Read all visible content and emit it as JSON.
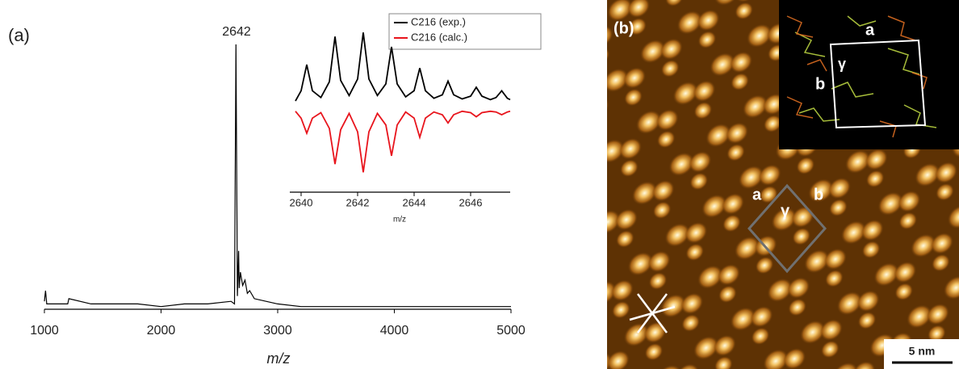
{
  "chart_data": [
    {
      "type": "line",
      "panel_label": "(a)",
      "peak_label": "2642",
      "x_label": "m/z",
      "color": "#000000",
      "x": [
        1000,
        1010,
        1020,
        1200,
        1210,
        1400,
        1600,
        1800,
        2000,
        2200,
        2400,
        2600,
        2630,
        2642,
        2655,
        2665,
        2670,
        2680,
        2700,
        2720,
        2740,
        2760,
        2800,
        2900,
        3000,
        3200,
        3500,
        4000,
        4500,
        5000
      ],
      "values": [
        3,
        7,
        2,
        2,
        4,
        2,
        2,
        2,
        1,
        2,
        2,
        3,
        2,
        100,
        5,
        22,
        8,
        14,
        9,
        11,
        6,
        7,
        4,
        3,
        2,
        1,
        1,
        1,
        1,
        1
      ],
      "xlim": [
        1000,
        5000
      ],
      "xticks": [
        1000,
        2000,
        3000,
        4000,
        5000
      ],
      "ylim": [
        0,
        100
      ]
    },
    {
      "type": "line",
      "x_label": "m/z",
      "x": [
        2639.8,
        2640.0,
        2640.2,
        2640.4,
        2640.7,
        2641.0,
        2641.2,
        2641.4,
        2641.7,
        2642.0,
        2642.2,
        2642.4,
        2642.7,
        2643.0,
        2643.2,
        2643.4,
        2643.7,
        2644.0,
        2644.2,
        2644.4,
        2644.7,
        2645.0,
        2645.2,
        2645.4,
        2645.7,
        2646.0,
        2646.2,
        2646.4,
        2646.7,
        2646.9,
        2647.1,
        2647.3,
        2647.4
      ],
      "series": [
        {
          "name": "C216 (exp.)",
          "color": "#000000",
          "values": [
            0,
            15,
            53,
            15,
            5,
            28,
            94,
            30,
            8,
            32,
            100,
            32,
            8,
            25,
            79,
            25,
            6,
            15,
            48,
            15,
            4,
            9,
            29,
            9,
            3,
            7,
            20,
            7,
            2,
            5,
            15,
            4,
            2
          ]
        },
        {
          "name": "C216 (calc.)",
          "color": "#e8141c",
          "values": [
            -15,
            -25,
            -47,
            -25,
            -17,
            -40,
            -92,
            -42,
            -18,
            -45,
            -104,
            -45,
            -18,
            -35,
            -80,
            -35,
            -16,
            -25,
            -53,
            -25,
            -16,
            -20,
            -32,
            -20,
            -15,
            -17,
            -23,
            -17,
            -15,
            -16,
            -20,
            -16,
            -15
          ]
        }
      ],
      "xlim": [
        2639.6,
        2647.4
      ],
      "xticks": [
        2640,
        2642,
        2644,
        2646
      ],
      "ylim": [
        -133,
        112
      ]
    }
  ],
  "image_panel": {
    "label": "(b)",
    "inset_labels": {
      "a": "a",
      "b": "b",
      "gamma": "γ"
    },
    "cell_labels": {
      "a": "a",
      "b": "b",
      "gamma": "γ"
    },
    "scale_bar": "5 nm"
  }
}
